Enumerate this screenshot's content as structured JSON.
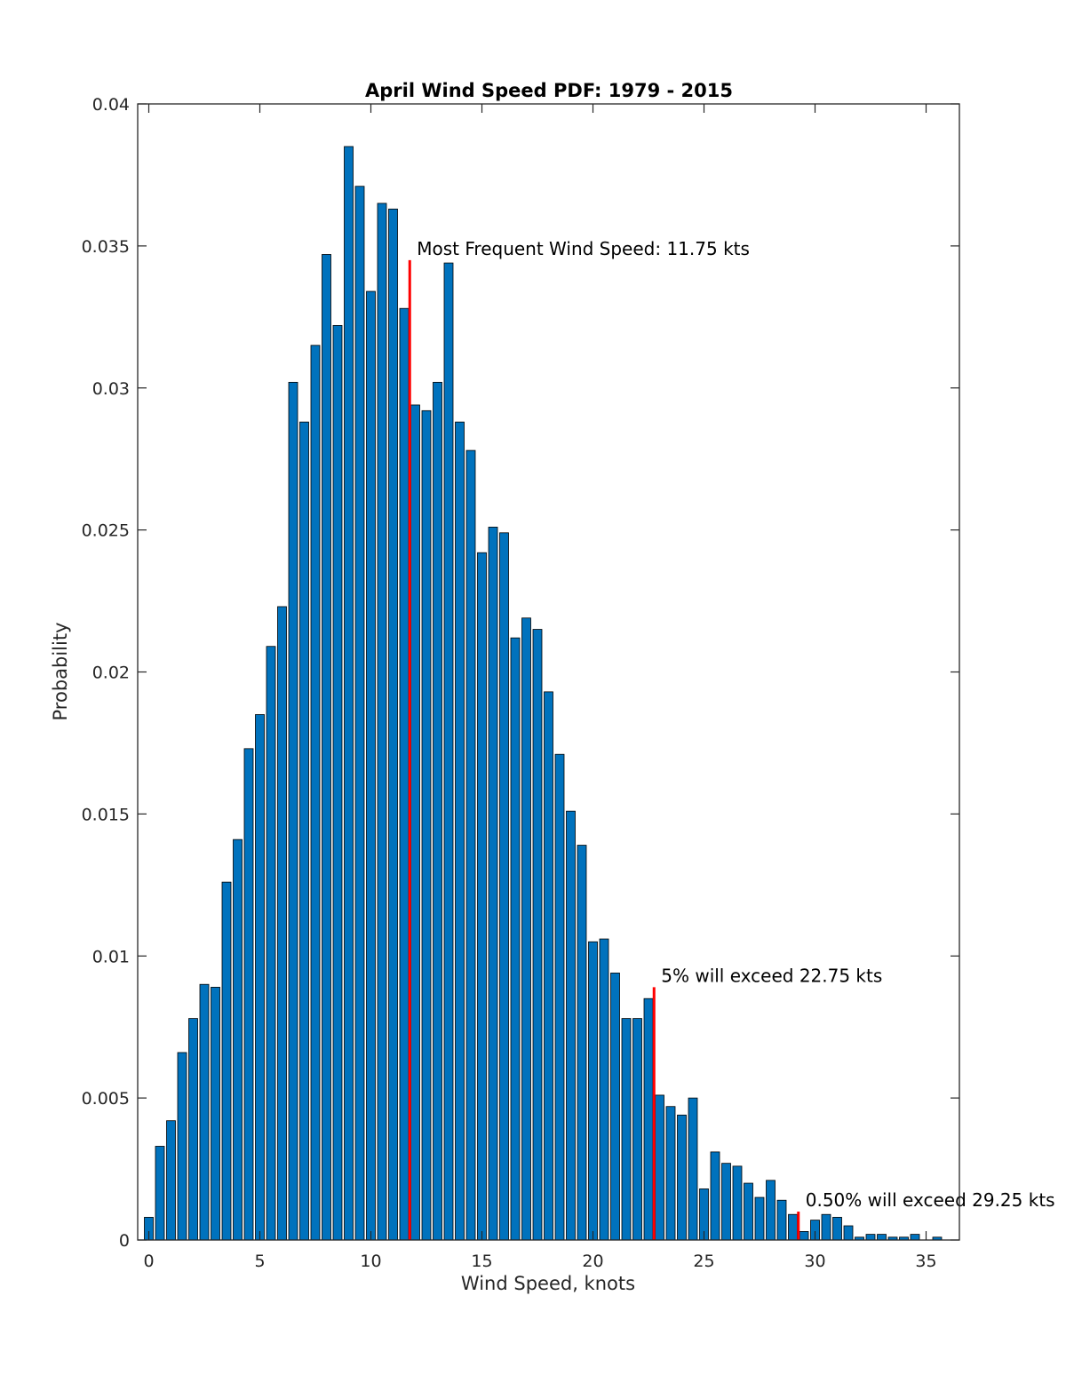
{
  "chart_data": {
    "type": "bar",
    "title": "April Wind Speed PDF: 1979 - 2015",
    "xlabel": "Wind Speed, knots",
    "ylabel": "Probability",
    "xlim": [
      -0.5,
      36.5
    ],
    "ylim": [
      0,
      0.04
    ],
    "bin_width": 0.5,
    "bar_color": "#0072BD",
    "marker_color": "#FF0000",
    "x": [
      0,
      0.5,
      1,
      1.5,
      2,
      2.5,
      3,
      3.5,
      4,
      4.5,
      5,
      5.5,
      6,
      6.5,
      7,
      7.5,
      8,
      8.5,
      9,
      9.5,
      10,
      10.5,
      11,
      11.5,
      12,
      12.5,
      13,
      13.5,
      14,
      14.5,
      15,
      15.5,
      16,
      16.5,
      17,
      17.5,
      18,
      18.5,
      19,
      19.5,
      20,
      20.5,
      21,
      21.5,
      22,
      22.5,
      23,
      23.5,
      24,
      24.5,
      25,
      25.5,
      26,
      26.5,
      27,
      27.5,
      28,
      28.5,
      29,
      29.5,
      30,
      30.5,
      31,
      31.5,
      32,
      32.5,
      33,
      33.5,
      34,
      34.5,
      35,
      35.5,
      36
    ],
    "values": [
      0.0008,
      0.0033,
      0.0042,
      0.0066,
      0.0078,
      0.009,
      0.0089,
      0.0126,
      0.0141,
      0.0173,
      0.0185,
      0.0209,
      0.0223,
      0.0302,
      0.0288,
      0.0315,
      0.0347,
      0.0322,
      0.0385,
      0.0371,
      0.0334,
      0.0365,
      0.0363,
      0.0328,
      0.0294,
      0.0292,
      0.0302,
      0.0344,
      0.0288,
      0.0278,
      0.0242,
      0.0251,
      0.0249,
      0.0212,
      0.0219,
      0.0215,
      0.0193,
      0.0171,
      0.0151,
      0.0139,
      0.0105,
      0.0106,
      0.0094,
      0.0078,
      0.0078,
      0.0085,
      0.0051,
      0.0047,
      0.0044,
      0.005,
      0.0018,
      0.0031,
      0.0027,
      0.0026,
      0.002,
      0.0015,
      0.0021,
      0.0014,
      0.0009,
      0.0003,
      0.0007,
      0.0009,
      0.0008,
      0.0005,
      0.0001,
      0.0002,
      0.0002,
      0.0001,
      0.0001,
      0.0002,
      0.0,
      0.0001,
      0.0
    ],
    "x_ticks": [
      0,
      5,
      10,
      15,
      20,
      25,
      30,
      35
    ],
    "x_tick_labels": [
      "0",
      "5",
      "10",
      "15",
      "20",
      "25",
      "30",
      "35"
    ],
    "y_ticks": [
      0,
      0.005,
      0.01,
      0.015,
      0.02,
      0.025,
      0.03,
      0.035,
      0.04
    ],
    "y_tick_labels": [
      "0",
      "0.005",
      "0.01",
      "0.015",
      "0.02",
      "0.025",
      "0.03",
      "0.035",
      "0.04"
    ],
    "markers": [
      {
        "x": 11.75,
        "y": 0.0345,
        "label": "Most Frequent Wind Speed: 11.75 kts"
      },
      {
        "x": 22.75,
        "y": 0.0089,
        "label": "5% will exceed 22.75 kts"
      },
      {
        "x": 29.25,
        "y": 0.001,
        "label": "0.50% will exceed 29.25 kts"
      }
    ]
  }
}
